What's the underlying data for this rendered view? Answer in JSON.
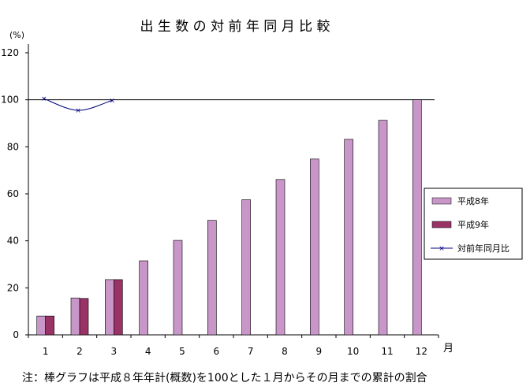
{
  "chart_data": {
    "type": "bar",
    "title": "出 生 数 の 対 前 年 同 月 比 較",
    "ylabel": "(%)",
    "xlabel": "月",
    "ylim": [
      0,
      120
    ],
    "yticks": [
      0,
      20,
      40,
      60,
      80,
      100,
      120
    ],
    "categories": [
      "1",
      "2",
      "3",
      "4",
      "5",
      "6",
      "7",
      "8",
      "9",
      "10",
      "11",
      "12"
    ],
    "series": [
      {
        "name": "平成8年",
        "kind": "bar",
        "color": "#c896c8",
        "values": [
          8,
          15.7,
          23.5,
          31.5,
          40.2,
          48.7,
          57.5,
          66.1,
          74.8,
          83.2,
          91.3,
          100
        ]
      },
      {
        "name": "平成9年",
        "kind": "bar",
        "color": "#993366",
        "values": [
          8,
          15.5,
          23.5,
          null,
          null,
          null,
          null,
          null,
          null,
          null,
          null,
          null
        ]
      },
      {
        "name": "対前年同月比",
        "kind": "line",
        "color": "#000080",
        "values": [
          100.5,
          95.5,
          99.8,
          null,
          null,
          null,
          null,
          null,
          null,
          null,
          null,
          null
        ]
      }
    ],
    "reference_line": 100,
    "legend_position": "right",
    "grid": false,
    "note": "注：棒グラフは平成８年年計(概数)を100とした１月からその月までの累計の割合"
  }
}
